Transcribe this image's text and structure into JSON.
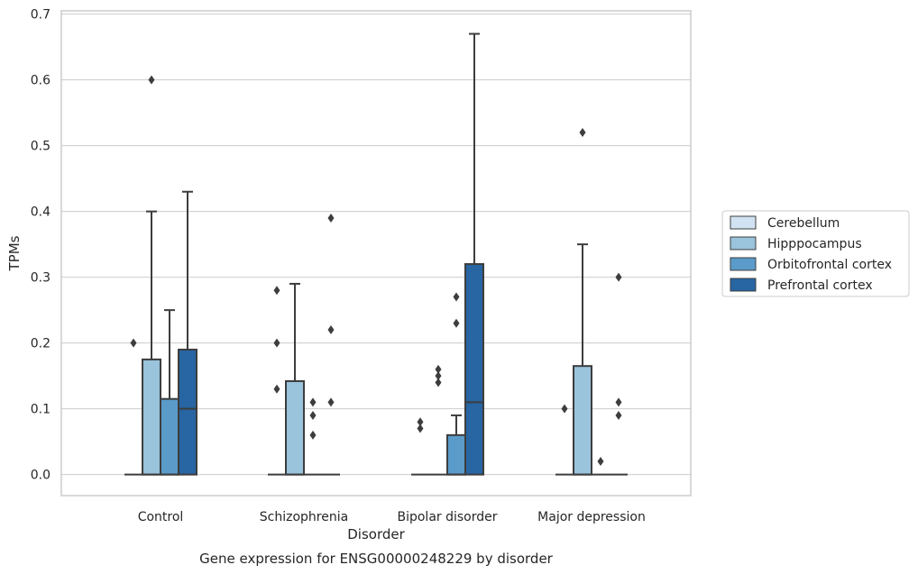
{
  "chart_data": {
    "type": "box",
    "title": "",
    "caption": "Gene expression for ENSG00000248229 by disorder",
    "xlabel": "Disorder",
    "ylabel": "TPMs",
    "ylim": [
      -0.032,
      0.705
    ],
    "yticks": [
      0.0,
      0.1,
      0.2,
      0.3,
      0.4,
      0.5,
      0.6,
      0.7
    ],
    "ytick_labels": [
      "0.0",
      "0.1",
      "0.2",
      "0.3",
      "0.4",
      "0.5",
      "0.6",
      "0.7"
    ],
    "grid": true,
    "legend_position": "right",
    "categories": [
      "Control",
      "Schizophrenia",
      "Bipolar disorder",
      "Major depression"
    ],
    "series": [
      {
        "name": "Cerebellum",
        "color": "#d1e3f2",
        "boxes": [
          {
            "q1": 0,
            "median": 0,
            "q3": 0,
            "whisker_low": 0,
            "whisker_high": 0,
            "outliers": [
              0.2
            ]
          },
          {
            "q1": 0,
            "median": 0,
            "q3": 0,
            "whisker_low": 0,
            "whisker_high": 0,
            "outliers": [
              0.13,
              0.2,
              0.28
            ]
          },
          {
            "q1": 0,
            "median": 0,
            "q3": 0,
            "whisker_low": 0,
            "whisker_high": 0,
            "outliers": [
              0.07,
              0.08
            ]
          },
          {
            "q1": 0,
            "median": 0,
            "q3": 0,
            "whisker_low": 0,
            "whisker_high": 0,
            "outliers": [
              0.1
            ]
          }
        ]
      },
      {
        "name": "Hipppocampus",
        "color": "#9ac3dc",
        "boxes": [
          {
            "q1": 0,
            "median": 0,
            "q3": 0.175,
            "whisker_low": 0,
            "whisker_high": 0.4,
            "outliers": [
              0.6
            ]
          },
          {
            "q1": 0,
            "median": 0,
            "q3": 0.142,
            "whisker_low": 0,
            "whisker_high": 0.29,
            "outliers": []
          },
          {
            "q1": 0,
            "median": 0,
            "q3": 0,
            "whisker_low": 0,
            "whisker_high": 0,
            "outliers": [
              0.14,
              0.15,
              0.16
            ]
          },
          {
            "q1": 0,
            "median": 0,
            "q3": 0.165,
            "whisker_low": 0,
            "whisker_high": 0.35,
            "outliers": [
              0.52
            ]
          }
        ]
      },
      {
        "name": "Orbitofrontal cortex",
        "color": "#5a9bc9",
        "boxes": [
          {
            "q1": 0,
            "median": 0,
            "q3": 0.115,
            "whisker_low": 0,
            "whisker_high": 0.25,
            "outliers": []
          },
          {
            "q1": 0,
            "median": 0,
            "q3": 0,
            "whisker_low": 0,
            "whisker_high": 0,
            "outliers": [
              0.06,
              0.09,
              0.11
            ]
          },
          {
            "q1": 0,
            "median": 0,
            "q3": 0.06,
            "whisker_low": 0,
            "whisker_high": 0.09,
            "outliers": [
              0.23,
              0.27
            ]
          },
          {
            "q1": 0,
            "median": 0,
            "q3": 0,
            "whisker_low": 0,
            "whisker_high": 0,
            "outliers": [
              0.02
            ]
          }
        ]
      },
      {
        "name": "Prefrontal cortex",
        "color": "#2765a3",
        "boxes": [
          {
            "q1": 0,
            "median": 0.1,
            "q3": 0.19,
            "whisker_low": 0,
            "whisker_high": 0.43,
            "outliers": []
          },
          {
            "q1": 0,
            "median": 0,
            "q3": 0,
            "whisker_low": 0,
            "whisker_high": 0,
            "outliers": [
              0.11,
              0.22,
              0.39
            ]
          },
          {
            "q1": 0,
            "median": 0.11,
            "q3": 0.32,
            "whisker_low": 0,
            "whisker_high": 0.67,
            "outliers": []
          },
          {
            "q1": 0,
            "median": 0,
            "q3": 0,
            "whisker_low": 0,
            "whisker_high": 0,
            "outliers": [
              0.09,
              0.11,
              0.3
            ]
          }
        ]
      }
    ]
  }
}
